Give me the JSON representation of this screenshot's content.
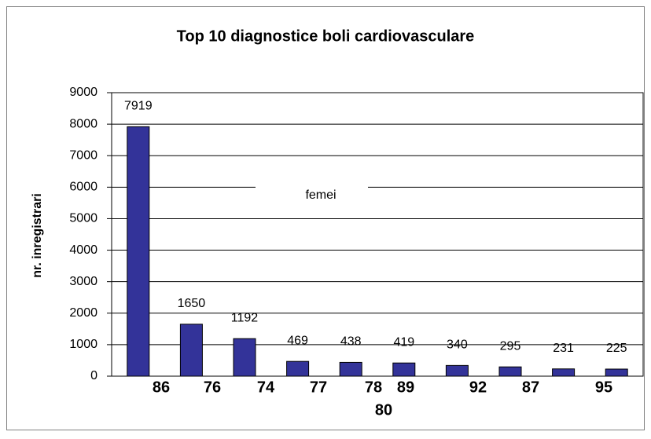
{
  "chart_data": {
    "type": "bar",
    "title": "Top 10 diagnostice boli cardiovasculare",
    "y_label": "nr. inregistrari",
    "categories": [
      "86",
      "76",
      "74",
      "77",
      "78",
      "80",
      "89",
      "92",
      "87",
      "95"
    ],
    "series": [
      {
        "name": "femei",
        "color": "#333399",
        "values": [
          7919,
          1650,
          1192,
          469,
          438,
          419,
          340,
          295,
          231,
          225
        ]
      }
    ],
    "ylim": [
      0,
      9000
    ],
    "yticks": [
      0,
      1000,
      2000,
      3000,
      4000,
      5000,
      6000,
      7000,
      8000,
      9000
    ],
    "grid": true
  }
}
